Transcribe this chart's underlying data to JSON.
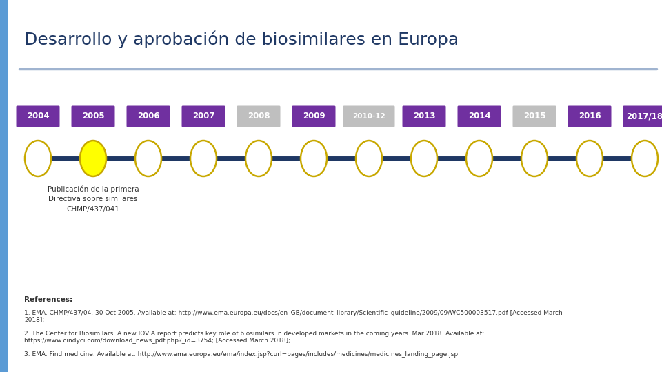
{
  "title": "Desarrollo y aprobación de biosimilares en Europa",
  "title_fontsize": 18,
  "title_color": "#1f3864",
  "background_color": "#ffffff",
  "left_bar_color": "#5b9bd5",
  "top_line_color": "#a0b4d0",
  "timeline_line_color": "#1f3864",
  "years": [
    "2004",
    "2005",
    "2006",
    "2007",
    "2008",
    "2009",
    "2010-12",
    "2013",
    "2014",
    "2015",
    "2016",
    "2017/18"
  ],
  "year_bg_colors": [
    "#7030a0",
    "#7030a0",
    "#7030a0",
    "#7030a0",
    "#bfbfbf",
    "#7030a0",
    "#bfbfbf",
    "#7030a0",
    "#7030a0",
    "#bfbfbf",
    "#7030a0",
    "#7030a0"
  ],
  "year_text_color": "#ffffff",
  "circle_fill_colors": [
    "#ffffff",
    "#ffff00",
    "#ffffff",
    "#ffffff",
    "#ffffff",
    "#ffffff",
    "#ffffff",
    "#ffffff",
    "#ffffff",
    "#ffffff",
    "#ffffff",
    "#ffffff"
  ],
  "circle_edge_color": "#c8a800",
  "annotation_index": 1,
  "annotation_text": "Publicación de la primera\nDirectiva sobre similares\nCHMP/437/041",
  "annotation_fontsize": 7.5,
  "references_title": "References:",
  "ref1": "1. EMA. CHMP/437/04. 30 Oct 2005. Available at: http://www.ema.europa.eu/docs/en_GB/document_library/Scientific_guideline/2009/09/WC500003517.pdf [Accessed March\n2018];",
  "ref2": "2. The Center for Biosimilars. A new IOVIA report predicts key role of biosimilars in developed markets in the coming years. Mar 2018. Available at:\nhttps://www.cindyci.com/download_news_pdf.php?_id=3754; [Accessed March 2018];",
  "ref3": "3. EMA. Find medicine. Available at: http://www.ema.europa.eu/ema/index.jsp?curl=pages/includes/medicines/medicines_landing_page.jsp ."
}
